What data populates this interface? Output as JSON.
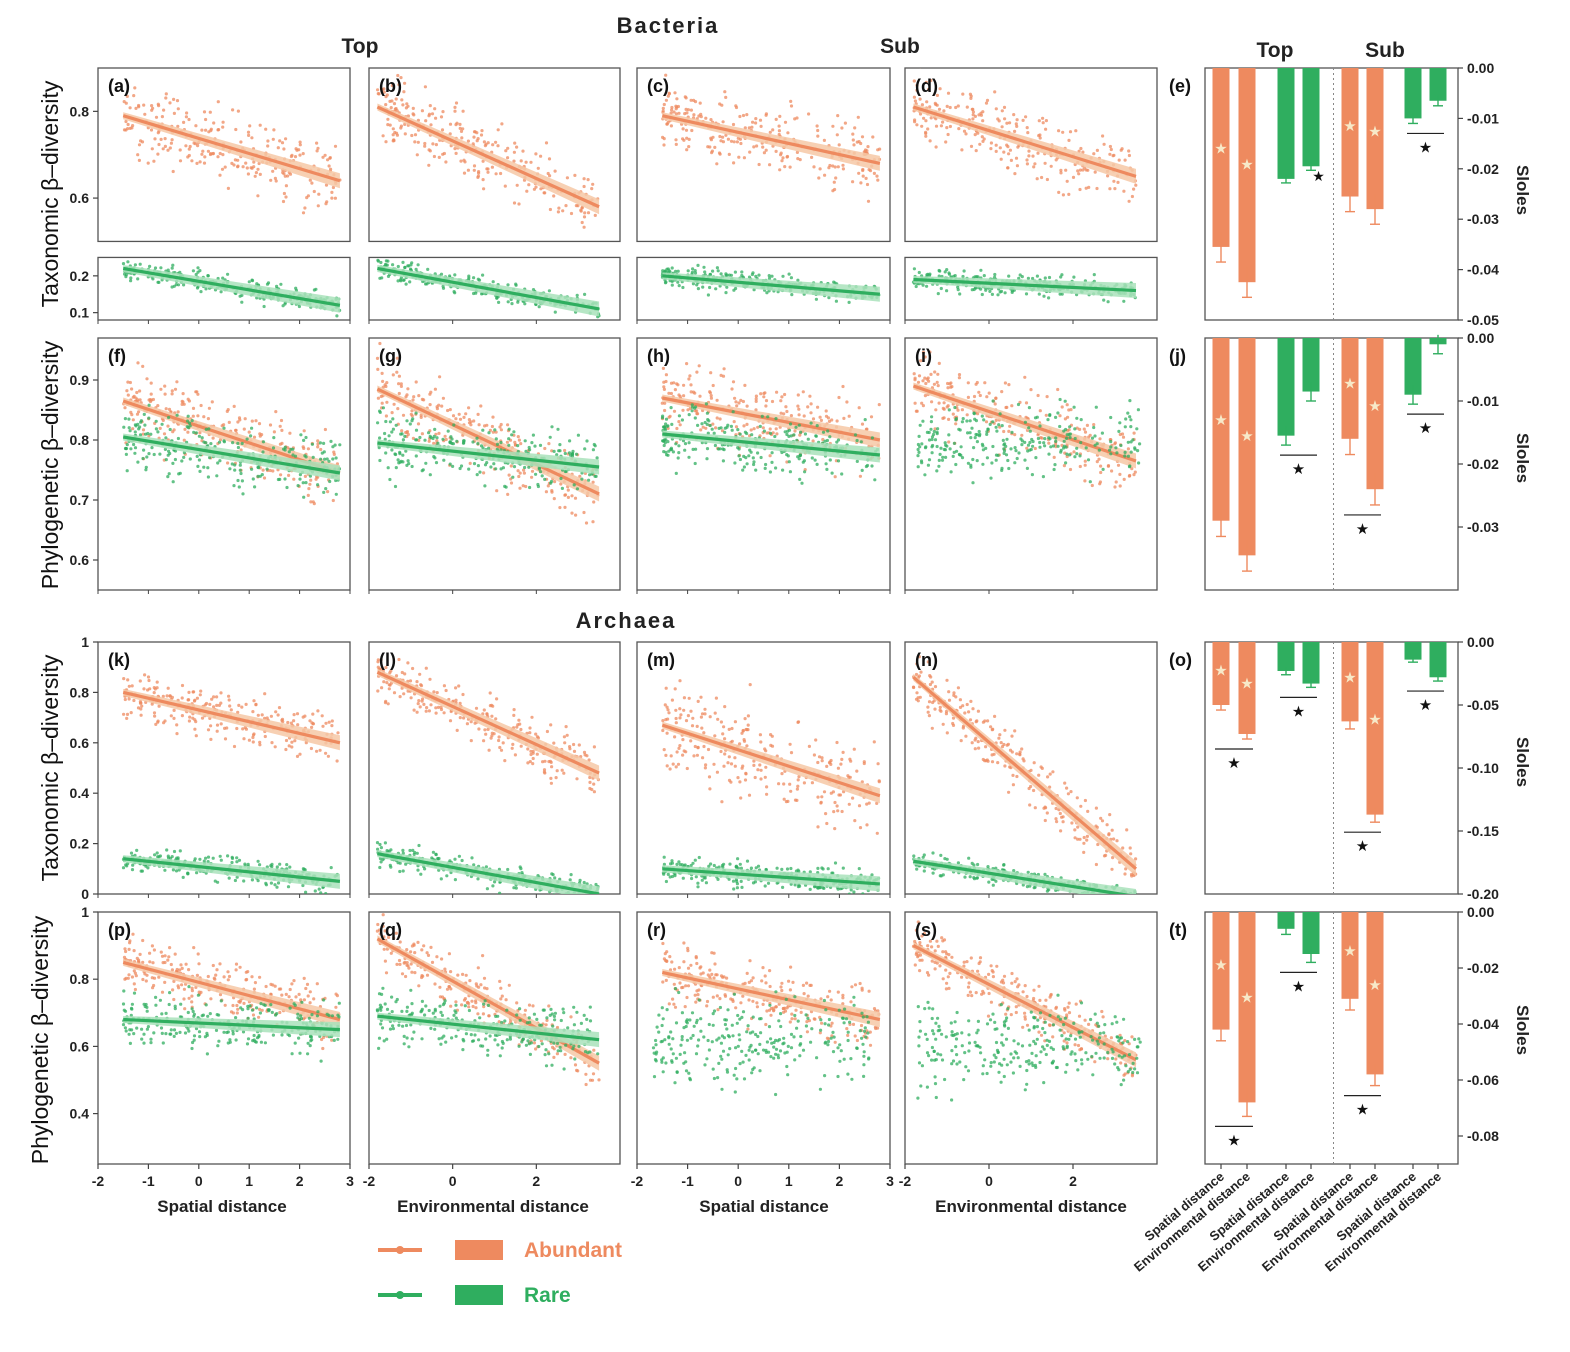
{
  "figure": {
    "bacteria_title": "Bacteria",
    "archaea_title": "Archaea",
    "col_top": "Top",
    "col_sub": "Sub",
    "bar_col_top": "Top",
    "bar_col_sub": "Sub",
    "ylabel_tax": "Taxonomic β–diversity",
    "ylabel_phy": "Phylogenetic β–diversity",
    "sloles_label": "Sloles",
    "xlabel_spatial": "Spatial distance",
    "xlabel_env": "Environmental distance",
    "legend_abundant": "Abundant",
    "legend_rare": "Rare"
  },
  "colors": {
    "abundant": "#ee8a5f",
    "rare": "#2fae5f",
    "abundant_band": "#f6c8a6",
    "rare_band": "#a9e2bb"
  },
  "chart_data": [
    {
      "id": "a",
      "type": "scatter",
      "label": "(a)",
      "group": "Bacteria",
      "layer": "Top",
      "metric": "Taxonomic β-diversity",
      "predictor": "Spatial distance",
      "xlim": [
        -2,
        3
      ],
      "broken_y": true,
      "y_upper": [
        0.5,
        0.9
      ],
      "y_lower": [
        0.08,
        0.25
      ],
      "yticks_upper": [
        0.6,
        0.8
      ],
      "yticks_lower": [
        0.1,
        0.2
      ],
      "series": [
        {
          "name": "Abundant",
          "fit": [
            [
              -1.5,
              0.79
            ],
            [
              2.8,
              0.64
            ]
          ],
          "spread": 0.08
        },
        {
          "name": "Rare",
          "fit": [
            [
              -1.5,
              0.22
            ],
            [
              2.8,
              0.12
            ]
          ],
          "spread": 0.03
        }
      ]
    },
    {
      "id": "b",
      "type": "scatter",
      "label": "(b)",
      "group": "Bacteria",
      "layer": "Top",
      "metric": "Taxonomic β-diversity",
      "predictor": "Environmental distance",
      "xlim": [
        -2,
        4
      ],
      "broken_y": true,
      "y_upper": [
        0.5,
        0.9
      ],
      "y_lower": [
        0.08,
        0.25
      ],
      "series": [
        {
          "name": "Abundant",
          "fit": [
            [
              -1.8,
              0.81
            ],
            [
              3.5,
              0.58
            ]
          ],
          "spread": 0.08
        },
        {
          "name": "Rare",
          "fit": [
            [
              -1.8,
              0.22
            ],
            [
              3.5,
              0.11
            ]
          ],
          "spread": 0.03
        }
      ]
    },
    {
      "id": "c",
      "type": "scatter",
      "label": "(c)",
      "group": "Bacteria",
      "layer": "Sub",
      "metric": "Taxonomic β-diversity",
      "predictor": "Spatial distance",
      "xlim": [
        -2,
        3
      ],
      "broken_y": true,
      "y_upper": [
        0.5,
        0.9
      ],
      "y_lower": [
        0.08,
        0.25
      ],
      "series": [
        {
          "name": "Abundant",
          "fit": [
            [
              -1.5,
              0.79
            ],
            [
              2.8,
              0.68
            ]
          ],
          "spread": 0.08
        },
        {
          "name": "Rare",
          "fit": [
            [
              -1.5,
              0.2
            ],
            [
              2.8,
              0.15
            ]
          ],
          "spread": 0.03
        }
      ]
    },
    {
      "id": "d",
      "type": "scatter",
      "label": "(d)",
      "group": "Bacteria",
      "layer": "Sub",
      "metric": "Taxonomic β-diversity",
      "predictor": "Environmental distance",
      "xlim": [
        -2,
        4
      ],
      "broken_y": true,
      "y_upper": [
        0.5,
        0.9
      ],
      "y_lower": [
        0.08,
        0.25
      ],
      "series": [
        {
          "name": "Abundant",
          "fit": [
            [
              -1.8,
              0.81
            ],
            [
              3.5,
              0.65
            ]
          ],
          "spread": 0.08
        },
        {
          "name": "Rare",
          "fit": [
            [
              -1.8,
              0.19
            ],
            [
              3.5,
              0.16
            ]
          ],
          "spread": 0.03
        }
      ]
    },
    {
      "id": "e",
      "type": "bar",
      "label": "(e)",
      "ylim": [
        -0.05,
        0.0
      ],
      "yticks": [
        0.0,
        -0.01,
        -0.02,
        -0.03,
        -0.04,
        -0.05
      ],
      "ytick_labels": [
        "0.00",
        "-0.01",
        "-0.02",
        "-0.03",
        "-0.04",
        "-0.05"
      ],
      "ylabel": "Sloles",
      "values": [
        -0.0355,
        -0.0425,
        -0.022,
        -0.0195,
        -0.0255,
        -0.028,
        -0.01,
        -0.0065
      ],
      "errors": [
        0.003,
        0.003,
        0.0008,
        0.0008,
        0.003,
        0.003,
        0.001,
        0.001
      ],
      "within_pair_stars": [
        1
      ],
      "between_stars": [
        3
      ]
    },
    {
      "id": "f",
      "type": "scatter",
      "label": "(f)",
      "group": "Bacteria",
      "layer": "Top",
      "metric": "Phylogenetic β-diversity",
      "predictor": "Spatial distance",
      "xlim": [
        -2,
        3
      ],
      "ylim": [
        0.55,
        0.97
      ],
      "yticks": [
        0.6,
        0.7,
        0.8,
        0.9
      ],
      "series": [
        {
          "name": "Abundant",
          "fit": [
            [
              -1.5,
              0.865
            ],
            [
              2.8,
              0.745
            ]
          ],
          "spread": 0.06
        },
        {
          "name": "Rare",
          "fit": [
            [
              -1.5,
              0.805
            ],
            [
              2.8,
              0.745
            ]
          ],
          "spread": 0.05
        }
      ]
    },
    {
      "id": "g",
      "type": "scatter",
      "label": "(g)",
      "group": "Bacteria",
      "layer": "Top",
      "metric": "Phylogenetic β-diversity",
      "predictor": "Environmental distance",
      "xlim": [
        -2,
        4
      ],
      "ylim": [
        0.55,
        0.97
      ],
      "series": [
        {
          "name": "Abundant",
          "fit": [
            [
              -1.8,
              0.885
            ],
            [
              3.5,
              0.71
            ]
          ],
          "spread": 0.06
        },
        {
          "name": "Rare",
          "fit": [
            [
              -1.8,
              0.795
            ],
            [
              3.5,
              0.755
            ]
          ],
          "spread": 0.05
        }
      ]
    },
    {
      "id": "h",
      "type": "scatter",
      "label": "(h)",
      "group": "Bacteria",
      "layer": "Sub",
      "metric": "Phylogenetic β-diversity",
      "predictor": "Spatial distance",
      "xlim": [
        -2,
        3
      ],
      "ylim": [
        0.55,
        0.97
      ],
      "series": [
        {
          "name": "Abundant",
          "fit": [
            [
              -1.5,
              0.87
            ],
            [
              2.8,
              0.8
            ]
          ],
          "spread": 0.06
        },
        {
          "name": "Rare",
          "fit": [
            [
              -1.5,
              0.81
            ],
            [
              2.8,
              0.775
            ]
          ],
          "spread": 0.05
        }
      ]
    },
    {
      "id": "i",
      "type": "scatter",
      "label": "(i)",
      "group": "Bacteria",
      "layer": "Sub",
      "metric": "Phylogenetic β-diversity",
      "predictor": "Environmental distance",
      "xlim": [
        -2,
        4
      ],
      "ylim": [
        0.55,
        0.97
      ],
      "series": [
        {
          "name": "Abundant",
          "fit": [
            [
              -1.8,
              0.89
            ],
            [
              3.5,
              0.765
            ]
          ],
          "spread": 0.06
        },
        {
          "name": "Rare",
          "fit": null,
          "center": 0.8,
          "spread": 0.06
        }
      ]
    },
    {
      "id": "j",
      "type": "bar",
      "label": "(j)",
      "ylim": [
        -0.04,
        0.0
      ],
      "yticks": [
        0.0,
        -0.01,
        -0.02,
        -0.03
      ],
      "ytick_labels": [
        "0.00",
        "-0.01",
        "-0.02",
        "-0.03"
      ],
      "ylabel": "Sloles",
      "values": [
        -0.029,
        -0.0345,
        -0.0155,
        -0.0085,
        -0.016,
        -0.024,
        -0.009,
        -0.001
      ],
      "errors": [
        0.0025,
        0.0025,
        0.0015,
        0.0015,
        0.0025,
        0.0025,
        0.0015,
        0.0015
      ],
      "within_pair_stars": [],
      "between_stars": [
        1,
        2,
        3
      ]
    },
    {
      "id": "k",
      "type": "scatter",
      "label": "(k)",
      "group": "Archaea",
      "layer": "Top",
      "metric": "Taxonomic β-diversity",
      "predictor": "Spatial distance",
      "xlim": [
        -2,
        3
      ],
      "ylim": [
        0,
        1
      ],
      "yticks": [
        0.0,
        0.2,
        0.4,
        0.6,
        0.8,
        1.0
      ],
      "series": [
        {
          "name": "Abundant",
          "fit": [
            [
              -1.5,
              0.8
            ],
            [
              2.8,
              0.6
            ]
          ],
          "spread": 0.1
        },
        {
          "name": "Rare",
          "fit": [
            [
              -1.5,
              0.14
            ],
            [
              2.8,
              0.05
            ]
          ],
          "spread": 0.05
        }
      ]
    },
    {
      "id": "l",
      "type": "scatter",
      "label": "(l)",
      "group": "Archaea",
      "layer": "Top",
      "metric": "Taxonomic β-diversity",
      "predictor": "Environmental distance",
      "xlim": [
        -2,
        4
      ],
      "ylim": [
        0,
        1
      ],
      "series": [
        {
          "name": "Abundant",
          "fit": [
            [
              -1.8,
              0.88
            ],
            [
              3.5,
              0.48
            ]
          ],
          "spread": 0.1
        },
        {
          "name": "Rare",
          "fit": [
            [
              -1.8,
              0.16
            ],
            [
              3.5,
              0.0
            ]
          ],
          "spread": 0.05
        }
      ]
    },
    {
      "id": "m",
      "type": "scatter",
      "label": "(m)",
      "group": "Archaea",
      "layer": "Sub",
      "metric": "Taxonomic β-diversity",
      "predictor": "Spatial distance",
      "xlim": [
        -2,
        3
      ],
      "ylim": [
        0,
        1
      ],
      "series": [
        {
          "name": "Abundant",
          "fit": [
            [
              -1.5,
              0.67
            ],
            [
              2.8,
              0.39
            ]
          ],
          "spread": 0.18
        },
        {
          "name": "Rare",
          "fit": [
            [
              -1.5,
              0.1
            ],
            [
              2.8,
              0.04
            ]
          ],
          "spread": 0.05
        }
      ]
    },
    {
      "id": "n",
      "type": "scatter",
      "label": "(n)",
      "group": "Archaea",
      "layer": "Sub",
      "metric": "Taxonomic β-diversity",
      "predictor": "Environmental distance",
      "xlim": [
        -2,
        4
      ],
      "ylim": [
        0,
        1
      ],
      "series": [
        {
          "name": "Abundant",
          "fit": [
            [
              -1.8,
              0.86
            ],
            [
              3.5,
              0.1
            ]
          ],
          "spread": 0.12
        },
        {
          "name": "Rare",
          "fit": [
            [
              -1.8,
              0.13
            ],
            [
              3.5,
              -0.01
            ]
          ],
          "spread": 0.04
        }
      ]
    },
    {
      "id": "o",
      "type": "bar",
      "label": "(o)",
      "ylim": [
        -0.2,
        0.0
      ],
      "yticks": [
        0.0,
        -0.05,
        -0.1,
        -0.15,
        -0.2
      ],
      "ytick_labels": [
        "0.00",
        "-0.05",
        "-0.10",
        "-0.15",
        "-0.20"
      ],
      "ylabel": "Sloles",
      "values": [
        -0.05,
        -0.073,
        -0.023,
        -0.033,
        -0.063,
        -0.137,
        -0.014,
        -0.028
      ],
      "errors": [
        0.004,
        0.004,
        0.003,
        0.003,
        0.006,
        0.006,
        0.002,
        0.003
      ],
      "within_pair_stars": [],
      "between_stars": [
        0,
        1,
        2,
        3
      ]
    },
    {
      "id": "p",
      "type": "scatter",
      "label": "(p)",
      "group": "Archaea",
      "layer": "Top",
      "metric": "Phylogenetic β-diversity",
      "predictor": "Spatial distance",
      "xlim": [
        -2,
        3
      ],
      "ylim": [
        0.25,
        1
      ],
      "yticks": [
        0.4,
        0.6,
        0.8,
        1.0
      ],
      "series": [
        {
          "name": "Abundant",
          "fit": [
            [
              -1.5,
              0.85
            ],
            [
              2.8,
              0.68
            ]
          ],
          "spread": 0.08
        },
        {
          "name": "Rare",
          "fit": [
            [
              -1.5,
              0.68
            ],
            [
              2.8,
              0.65
            ]
          ],
          "spread": 0.08
        }
      ]
    },
    {
      "id": "q",
      "type": "scatter",
      "label": "(q)",
      "group": "Archaea",
      "layer": "Top",
      "metric": "Phylogenetic β-diversity",
      "predictor": "Environmental distance",
      "xlim": [
        -2,
        4
      ],
      "ylim": [
        0.25,
        1
      ],
      "series": [
        {
          "name": "Abundant",
          "fit": [
            [
              -1.8,
              0.92
            ],
            [
              3.5,
              0.55
            ]
          ],
          "spread": 0.08
        },
        {
          "name": "Rare",
          "fit": [
            [
              -1.8,
              0.69
            ],
            [
              3.5,
              0.62
            ]
          ],
          "spread": 0.08
        }
      ]
    },
    {
      "id": "r",
      "type": "scatter",
      "label": "(r)",
      "group": "Archaea",
      "layer": "Sub",
      "metric": "Phylogenetic β-diversity",
      "predictor": "Spatial distance",
      "xlim": [
        -2,
        3
      ],
      "ylim": [
        0.25,
        1
      ],
      "series": [
        {
          "name": "Abundant",
          "fit": [
            [
              -1.5,
              0.82
            ],
            [
              2.8,
              0.68
            ]
          ],
          "spread": 0.09
        },
        {
          "name": "Rare",
          "fit": null,
          "center": 0.62,
          "spread": 0.12
        }
      ]
    },
    {
      "id": "s",
      "type": "scatter",
      "label": "(s)",
      "group": "Archaea",
      "layer": "Sub",
      "metric": "Phylogenetic β-diversity",
      "predictor": "Environmental distance",
      "xlim": [
        -2,
        4
      ],
      "ylim": [
        0.25,
        1
      ],
      "series": [
        {
          "name": "Abundant",
          "fit": [
            [
              -1.8,
              0.9
            ],
            [
              3.5,
              0.56
            ]
          ],
          "spread": 0.08
        },
        {
          "name": "Rare",
          "fit": null,
          "center": 0.6,
          "spread": 0.12
        }
      ]
    },
    {
      "id": "t",
      "type": "bar",
      "label": "(t)",
      "ylim": [
        -0.09,
        0.0
      ],
      "yticks": [
        0.0,
        -0.02,
        -0.04,
        -0.06,
        -0.08
      ],
      "ytick_labels": [
        "0.00",
        "-0.02",
        "-0.04",
        "-0.06",
        "-0.08"
      ],
      "ylabel": "Sloles",
      "values": [
        -0.042,
        -0.068,
        -0.006,
        -0.015,
        -0.031,
        -0.058,
        0.0,
        0.0
      ],
      "errors": [
        0.004,
        0.005,
        0.002,
        0.003,
        0.004,
        0.004,
        0.0,
        0.0
      ],
      "within_pair_stars": [],
      "between_stars": [
        0,
        1,
        2
      ]
    }
  ],
  "axes": {
    "x_spatial_ticks": [
      -2,
      -1,
      0,
      1,
      2,
      3
    ],
    "x_env_ticks": [
      -2,
      0,
      2
    ],
    "x_spatial_tick_labels": [
      "-2",
      "-1",
      "0",
      "1",
      "2",
      "3"
    ],
    "x_env_tick_labels": [
      "-2",
      "0",
      "2"
    ],
    "bar_categories": [
      "Spatial distance",
      "Environmental distance",
      "Spatial distance",
      "Environmental distance",
      "Spatial distance",
      "Environmental distance",
      "Spatial distance",
      "Environmental distance"
    ],
    "bar_series": [
      "Abundant",
      "Abundant",
      "Rare",
      "Rare",
      "Abundant",
      "Abundant",
      "Rare",
      "Rare"
    ]
  }
}
